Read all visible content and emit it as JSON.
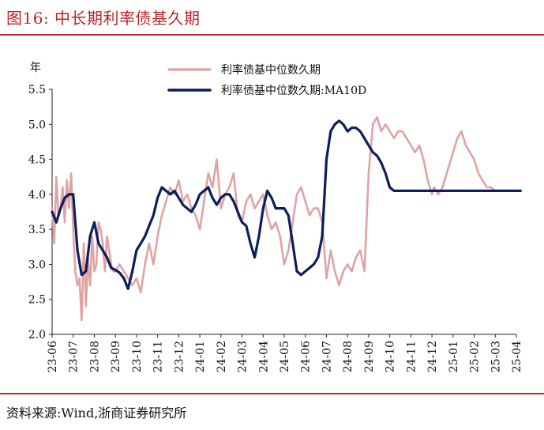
{
  "header": {
    "title": "图16:   中长期利率债基久期"
  },
  "footer": {
    "source": "资料来源:Wind,浙商证券研究所"
  },
  "chart_data": {
    "type": "line",
    "title": "",
    "ylabel": "年",
    "xlabel": "",
    "ylim": [
      2.0,
      5.5
    ],
    "y_ticks": [
      "2.0",
      "2.5",
      "3.0",
      "3.5",
      "4.0",
      "4.5",
      "5.0",
      "5.5"
    ],
    "x_ticks": [
      "23-06",
      "23-07",
      "23-08",
      "23-09",
      "23-10",
      "23-11",
      "23-12",
      "24-01",
      "24-02",
      "24-03",
      "24-04",
      "24-05",
      "24-06",
      "24-07",
      "24-08",
      "24-09",
      "24-10",
      "24-11",
      "24-12",
      "25-01",
      "25-02",
      "25-03",
      "25-04"
    ],
    "grid": false,
    "legend_position": "top-center",
    "series": [
      {
        "name": "利率债基中位数久期",
        "color": "#e0a3a3",
        "x": [
          0,
          0.1,
          0.2,
          0.3,
          0.4,
          0.5,
          0.6,
          0.7,
          0.8,
          0.9,
          1.0,
          1.1,
          1.2,
          1.3,
          1.4,
          1.5,
          1.6,
          1.7,
          1.8,
          1.9,
          2.0,
          2.1,
          2.2,
          2.3,
          2.4,
          2.5,
          2.6,
          2.7,
          2.8,
          2.9,
          3.0,
          3.2,
          3.4,
          3.6,
          3.8,
          4.0,
          4.2,
          4.4,
          4.6,
          4.8,
          5.0,
          5.2,
          5.4,
          5.6,
          5.8,
          6.0,
          6.2,
          6.4,
          6.6,
          6.8,
          7.0,
          7.2,
          7.4,
          7.6,
          7.8,
          8.0,
          8.2,
          8.4,
          8.6,
          8.8,
          9.0,
          9.2,
          9.4,
          9.6,
          9.8,
          10.0,
          10.2,
          10.4,
          10.6,
          10.8,
          11.0,
          11.2,
          11.4,
          11.6,
          11.8,
          12.0,
          12.2,
          12.4,
          12.6,
          12.8,
          13.0,
          13.2,
          13.4,
          13.6,
          13.8,
          14.0,
          14.2,
          14.4,
          14.6,
          14.8,
          15.0,
          15.2,
          15.4,
          15.6,
          15.8,
          16.0,
          16.2,
          16.4,
          16.6,
          16.8,
          17.0,
          17.2,
          17.4,
          17.6,
          17.8,
          18.0,
          18.1,
          18.2,
          18.3,
          18.4,
          18.5,
          18.6,
          18.8,
          19.0,
          19.2,
          19.4,
          19.6,
          19.8,
          20.0,
          20.2,
          20.4,
          20.6,
          20.8,
          21.0,
          21.2,
          21.4,
          21.6,
          21.8,
          22.0,
          22.2
        ],
        "values": [
          3.8,
          3.3,
          4.25,
          3.7,
          3.8,
          4.1,
          3.6,
          4.2,
          3.8,
          4.3,
          3.5,
          2.9,
          2.7,
          2.8,
          2.2,
          3.3,
          2.4,
          3.1,
          2.7,
          3.4,
          2.9,
          3.0,
          3.6,
          3.5,
          3.3,
          2.9,
          3.4,
          3.2,
          3.0,
          2.9,
          2.9,
          3.0,
          2.9,
          2.8,
          2.7,
          2.8,
          2.6,
          3.0,
          3.3,
          3.0,
          3.4,
          3.7,
          3.9,
          4.1,
          4.0,
          4.2,
          3.9,
          4.0,
          3.8,
          3.7,
          3.5,
          3.9,
          4.3,
          4.1,
          4.5,
          3.8,
          4.0,
          4.1,
          4.3,
          3.7,
          3.6,
          3.9,
          4.0,
          3.8,
          3.9,
          4.0,
          3.7,
          3.5,
          3.6,
          3.4,
          3.0,
          3.2,
          3.6,
          4.0,
          4.1,
          3.9,
          3.7,
          3.8,
          3.8,
          3.6,
          2.8,
          3.2,
          2.9,
          2.7,
          2.9,
          3.0,
          2.9,
          3.1,
          3.2,
          2.9,
          4.3,
          5.0,
          5.1,
          4.9,
          5.0,
          4.9,
          4.8,
          4.9,
          4.9,
          4.8,
          4.7,
          4.6,
          4.7,
          4.5,
          4.2,
          4.0,
          4.1,
          4.05,
          4.0,
          4.05,
          4.1,
          4.2,
          4.4,
          4.6,
          4.8,
          4.9,
          4.7,
          4.6,
          4.5,
          4.3,
          4.2,
          4.1,
          4.1,
          4.05,
          4.05,
          4.05,
          4.05,
          4.05,
          4.05,
          4.05
        ]
      },
      {
        "name": "利率债基中位数久期:MA10D",
        "color": "#0c1e5b",
        "x": [
          0,
          0.2,
          0.4,
          0.6,
          0.8,
          1.0,
          1.2,
          1.4,
          1.6,
          1.8,
          2.0,
          2.2,
          2.4,
          2.6,
          2.8,
          3.0,
          3.2,
          3.4,
          3.6,
          3.8,
          4.0,
          4.2,
          4.4,
          4.6,
          4.8,
          5.0,
          5.2,
          5.4,
          5.6,
          5.8,
          6.0,
          6.2,
          6.4,
          6.6,
          6.8,
          7.0,
          7.2,
          7.4,
          7.6,
          7.8,
          8.0,
          8.2,
          8.4,
          8.6,
          8.8,
          9.0,
          9.2,
          9.4,
          9.6,
          9.8,
          10.0,
          10.2,
          10.4,
          10.6,
          10.8,
          11.0,
          11.2,
          11.4,
          11.6,
          11.8,
          12.0,
          12.2,
          12.4,
          12.6,
          12.8,
          13.0,
          13.2,
          13.4,
          13.6,
          13.8,
          14.0,
          14.2,
          14.4,
          14.6,
          14.8,
          15.0,
          15.2,
          15.4,
          15.6,
          15.8,
          16.0,
          16.2,
          16.4,
          16.6,
          16.8,
          17.0,
          17.2,
          17.4,
          17.6,
          17.8,
          18.0,
          18.2,
          18.4,
          18.6,
          18.8,
          19.0,
          19.2,
          19.4,
          19.6,
          19.8,
          20.0,
          20.2,
          20.4,
          20.6,
          20.8,
          21.0,
          21.2,
          21.4,
          21.6,
          21.8,
          22.0,
          22.2
        ],
        "values": [
          3.75,
          3.6,
          3.8,
          3.95,
          4.0,
          4.0,
          3.2,
          2.85,
          2.9,
          3.4,
          3.6,
          3.3,
          3.2,
          3.1,
          2.95,
          2.92,
          2.88,
          2.8,
          2.65,
          2.9,
          3.2,
          3.3,
          3.4,
          3.55,
          3.7,
          3.95,
          4.1,
          4.05,
          4.0,
          4.05,
          3.95,
          3.85,
          3.8,
          3.75,
          3.85,
          4.0,
          4.05,
          4.1,
          3.95,
          3.85,
          3.95,
          4.0,
          4.0,
          3.9,
          3.75,
          3.6,
          3.55,
          3.3,
          3.1,
          3.4,
          3.8,
          4.05,
          3.95,
          3.8,
          3.8,
          3.8,
          3.7,
          3.3,
          2.9,
          2.85,
          2.9,
          2.95,
          3.0,
          3.1,
          3.4,
          4.5,
          4.9,
          5.0,
          5.05,
          5.0,
          4.9,
          4.95,
          4.95,
          4.9,
          4.8,
          4.7,
          4.6,
          4.55,
          4.45,
          4.3,
          4.1,
          4.05,
          4.05,
          4.05,
          4.05,
          4.05,
          4.05,
          4.05,
          4.05,
          4.05,
          4.05,
          4.05,
          4.05,
          4.05,
          4.05,
          4.05,
          4.05,
          4.05,
          4.05,
          4.05,
          4.05,
          4.05,
          4.05,
          4.05,
          4.05,
          4.05,
          4.05,
          4.05,
          4.05,
          4.05,
          4.05,
          4.05
        ]
      }
    ]
  }
}
